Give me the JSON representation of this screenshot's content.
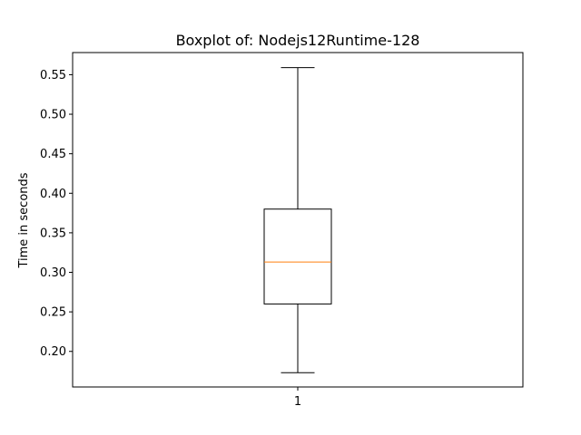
{
  "chart_data": {
    "type": "boxplot",
    "title": "Boxplot of: Nodejs12Runtime-128",
    "xlabel": "",
    "ylabel": "Time in seconds",
    "categories": [
      "1"
    ],
    "boxes": [
      {
        "category": "1",
        "whisker_low": 0.173,
        "q1": 0.26,
        "median": 0.313,
        "q3": 0.38,
        "whisker_high": 0.559
      }
    ],
    "ylim": [
      0.155,
      0.578
    ],
    "yticks": [
      0.2,
      0.25,
      0.3,
      0.35,
      0.4,
      0.45,
      0.5,
      0.55
    ],
    "ytick_labels": [
      "0.20",
      "0.25",
      "0.30",
      "0.35",
      "0.40",
      "0.45",
      "0.50",
      "0.55"
    ],
    "grid": false,
    "colors": {
      "box": "#000000",
      "median": "#ff7f0e",
      "whisker": "#000000"
    }
  }
}
